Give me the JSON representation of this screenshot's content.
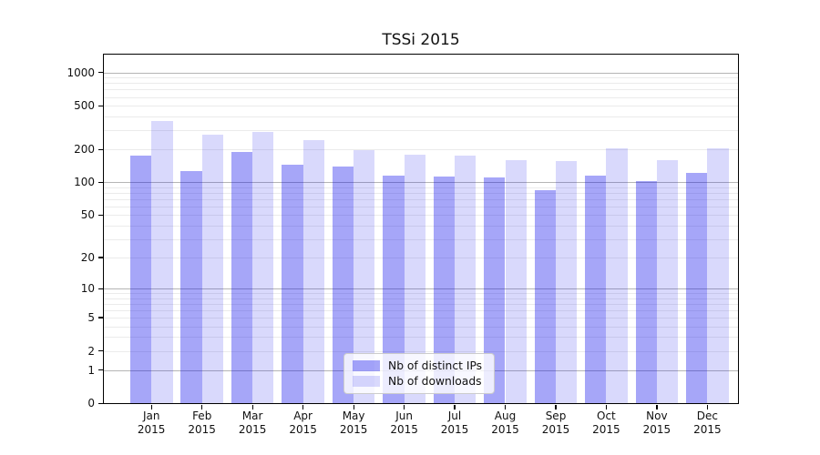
{
  "title": "TSSi 2015",
  "chart_data": {
    "type": "bar",
    "title": "TSSi 2015",
    "categories": [
      "Jan 2015",
      "Feb 2015",
      "Mar 2015",
      "Apr 2015",
      "May 2015",
      "Jun 2015",
      "Jul 2015",
      "Aug 2015",
      "Sep 2015",
      "Oct 2015",
      "Nov 2015",
      "Dec 2015"
    ],
    "series": [
      {
        "name": "Nb of distinct IPs",
        "color": "rgba(0,0,235,0.35)",
        "values": [
          176,
          128,
          191,
          144,
          139,
          116,
          114,
          111,
          85,
          116,
          103,
          121
        ]
      },
      {
        "name": "Nb of downloads",
        "color": "rgba(0,0,235,0.15)",
        "values": [
          366,
          273,
          290,
          242,
          198,
          180,
          177,
          161,
          156,
          204,
          160,
          204
        ]
      }
    ],
    "yscale": "log10(value+1)",
    "ytick_values": [
      1000,
      500,
      200,
      100,
      50,
      20,
      10,
      5,
      2,
      1,
      0
    ],
    "ytick_labels": [
      "1000",
      "500",
      "200",
      "100",
      "50",
      "20",
      "10",
      "5",
      "2",
      "1",
      "0"
    ],
    "minor_grid_values": [
      2,
      3,
      4,
      5,
      6,
      7,
      8,
      9,
      20,
      30,
      40,
      50,
      60,
      70,
      80,
      90,
      200,
      300,
      400,
      500,
      600,
      700,
      800,
      900
    ],
    "major_grid_values": [
      1,
      10,
      100,
      1000
    ],
    "ylim": [
      0,
      1450
    ],
    "grid": {
      "major_color": "#b5b5b5",
      "minor_color": "#ebebeb"
    },
    "legend_position": "lower center"
  }
}
